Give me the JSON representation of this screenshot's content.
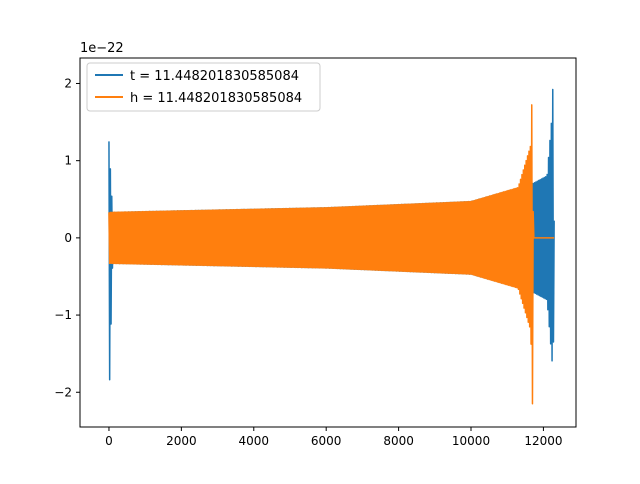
{
  "chart_data": {
    "type": "line",
    "title": "",
    "xlabel": "",
    "ylabel": "",
    "y_offset_text": "1e−22",
    "y_scale": 1e-22,
    "xlim": [
      -800,
      12900
    ],
    "ylim": [
      -2.45,
      2.33
    ],
    "x_ticks": [
      0,
      2000,
      4000,
      6000,
      8000,
      10000,
      12000
    ],
    "x_tick_labels": [
      "0",
      "2000",
      "4000",
      "6000",
      "8000",
      "10000",
      "12000"
    ],
    "y_ticks": [
      -2,
      -1,
      0,
      1,
      2
    ],
    "y_tick_labels": [
      "−2",
      "−1",
      "0",
      "1",
      "2"
    ],
    "grid": false,
    "legend_position": "upper-left",
    "series": [
      {
        "name": "t = 11.448201830585084",
        "color": "#1f77b4",
        "x_range": [
          0,
          12300
        ],
        "envelope": {
          "points": [
            {
              "x": 0,
              "upper": 1.25,
              "lower": -2.2
            },
            {
              "x": 100,
              "upper": 0.33,
              "lower": -0.33
            },
            {
              "x": 2000,
              "upper": 0.35,
              "lower": -0.35
            },
            {
              "x": 6000,
              "upper": 0.39,
              "lower": -0.39
            },
            {
              "x": 10000,
              "upper": 0.47,
              "lower": -0.47
            },
            {
              "x": 11700,
              "upper": 0.7,
              "lower": -0.7
            },
            {
              "x": 12100,
              "upper": 0.8,
              "lower": -0.8
            },
            {
              "x": 12240,
              "upper": 1.6,
              "lower": -1.6
            },
            {
              "x": 12270,
              "upper": 2.13,
              "lower": -1.8
            },
            {
              "x": 12300,
              "upper": 0.0,
              "lower": 0.0
            }
          ]
        }
      },
      {
        "name": "h = 11.448201830585084",
        "color": "#ff7f0e",
        "x_range": [
          0,
          12300
        ],
        "envelope": {
          "points": [
            {
              "x": 0,
              "upper": 0.33,
              "lower": -0.33
            },
            {
              "x": 2000,
              "upper": 0.35,
              "lower": -0.35
            },
            {
              "x": 6000,
              "upper": 0.39,
              "lower": -0.39
            },
            {
              "x": 10000,
              "upper": 0.47,
              "lower": -0.47
            },
            {
              "x": 11300,
              "upper": 0.65,
              "lower": -0.65
            },
            {
              "x": 11650,
              "upper": 1.2,
              "lower": -1.2
            },
            {
              "x": 11700,
              "upper": 2.13,
              "lower": -2.2
            },
            {
              "x": 11720,
              "upper": 0.0,
              "lower": 0.0
            },
            {
              "x": 12300,
              "upper": 0.0,
              "lower": 0.0
            }
          ]
        }
      }
    ]
  }
}
